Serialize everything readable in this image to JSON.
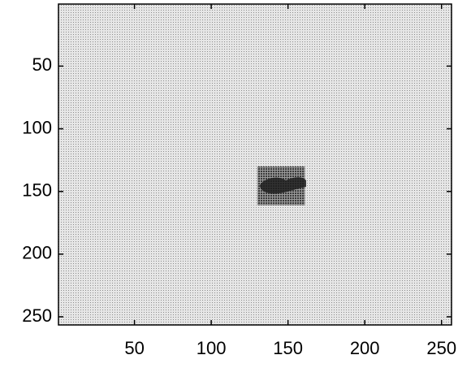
{
  "chart_data": {
    "type": "image",
    "xlim": [
      0.5,
      256.5
    ],
    "ylim": [
      256.5,
      0.5
    ],
    "xticks": [
      50,
      100,
      150,
      200,
      250
    ],
    "yticks": [
      50,
      100,
      150,
      200,
      250
    ],
    "patch": {
      "x": [
        130,
        161
      ],
      "y": [
        130,
        161
      ]
    }
  }
}
